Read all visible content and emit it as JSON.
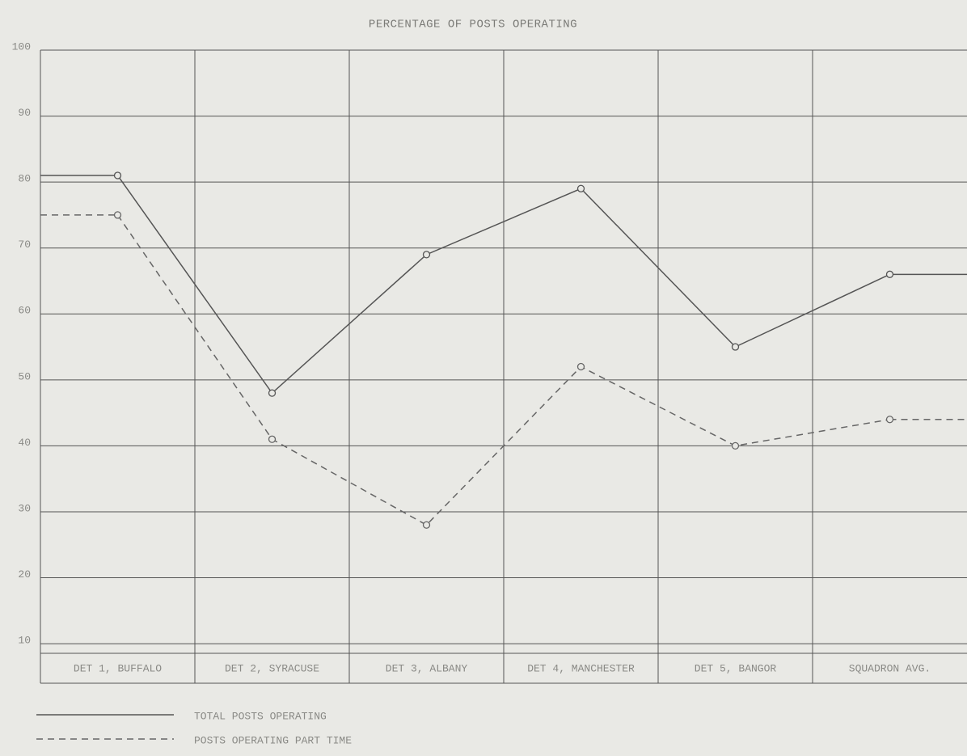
{
  "chart_data": {
    "type": "line",
    "title": "PERCENTAGE OF POSTS OPERATING",
    "categories": [
      "DET 1, BUFFALO",
      "DET 2, SYRACUSE",
      "DET 3, ALBANY",
      "DET 4, MANCHESTER",
      "DET 5, BANGOR",
      "SQUADRON AVG."
    ],
    "series": [
      {
        "name": "TOTAL POSTS OPERATING",
        "color": "#555555",
        "dash": "solid",
        "values": [
          81,
          48,
          69,
          79,
          55,
          66
        ]
      },
      {
        "name": "POSTS OPERATING PART TIME",
        "color": "#666666",
        "dash": "dashed",
        "values": [
          75,
          41,
          28,
          52,
          40,
          44
        ]
      }
    ],
    "ylim": [
      4,
      100
    ],
    "yticks": [
      10,
      20,
      30,
      40,
      50,
      60,
      70,
      80,
      90,
      100
    ],
    "grid": true
  }
}
